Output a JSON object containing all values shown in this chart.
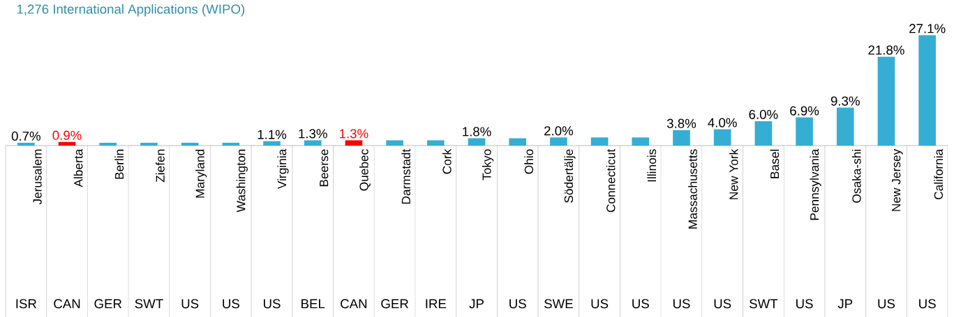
{
  "chart_data": {
    "type": "bar",
    "title": "1,276 International Applications (WIPO)",
    "categories": [
      "Jerusalem",
      "Alberta",
      "Berlin",
      "Ziefen",
      "Maryland",
      "Washington",
      "Virginia",
      "Beerse",
      "Quebec",
      "Darmstadt",
      "Cork",
      "Tokyo",
      "Ohio",
      "Södertälje",
      "Connecticut",
      "Illinois",
      "Massachusetts",
      "New York",
      "Basel",
      "Pennsylvania",
      "Osaka-shi",
      "New Jersey",
      "California"
    ],
    "values": [
      0.7,
      0.9,
      0.7,
      0.7,
      0.7,
      0.7,
      1.1,
      1.3,
      1.3,
      1.3,
      1.3,
      1.8,
      1.8,
      2.0,
      2.0,
      2.0,
      3.8,
      4.0,
      6.0,
      6.9,
      9.3,
      21.8,
      27.1
    ],
    "colors": [
      "#35aed3",
      "#ff0000",
      "#35aed3",
      "#35aed3",
      "#35aed3",
      "#35aed3",
      "#35aed3",
      "#35aed3",
      "#ff0000",
      "#35aed3",
      "#35aed3",
      "#35aed3",
      "#35aed3",
      "#35aed3",
      "#35aed3",
      "#35aed3",
      "#35aed3",
      "#35aed3",
      "#35aed3",
      "#35aed3",
      "#35aed3",
      "#35aed3",
      "#35aed3"
    ],
    "value_labels": [
      "0.7%",
      "0.9%",
      null,
      null,
      null,
      null,
      "1.1%",
      "1.3%",
      "1.3%",
      null,
      null,
      "1.8%",
      null,
      "2.0%",
      null,
      null,
      "3.8%",
      "4.0%",
      "6.0%",
      "6.9%",
      "9.3%",
      "21.8%",
      "27.1%"
    ],
    "annotations": [
      "ISR",
      "CAN",
      "GER",
      "SWT",
      "US",
      "US",
      "US",
      "BEL",
      "CAN",
      "GER",
      "IRE",
      "JP",
      "US",
      "SWE",
      "US",
      "US",
      "US",
      "US",
      "SWT",
      "US",
      "JP",
      "US",
      "US"
    ]
  }
}
